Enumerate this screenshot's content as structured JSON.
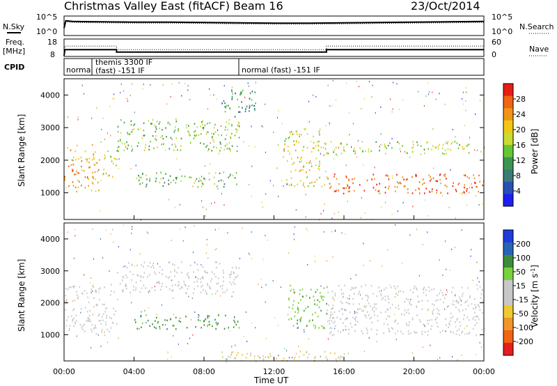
{
  "header": {
    "title": "Christmas Valley East (fitACF)",
    "beam": "Beam 16",
    "date": "23/Oct/2014"
  },
  "panel_labels": {
    "nsky": "N.Sky",
    "nsearch": "N.Search",
    "freq_line1": "Freq.",
    "freq_line2": "[MHz]",
    "nave": "Nave",
    "cpid": "CPID"
  },
  "noise_axis": {
    "left_ticks": [
      "10^5",
      "10^0"
    ],
    "right_ticks": [
      "10^5",
      "10^0"
    ]
  },
  "freq_axis": {
    "left_ticks": [
      "18",
      "8"
    ],
    "right_ticks": [
      "60",
      "0"
    ]
  },
  "cpid_segments": [
    {
      "label": "normal",
      "start_hour": 0,
      "end_hour": 1.6
    },
    {
      "label_line1": "themis 3300 IF",
      "label_line2": "(fast) -151 IF",
      "start_hour": 1.6,
      "end_hour": 10.0
    },
    {
      "label": "normal (fast) -151 IF",
      "start_hour": 10.0,
      "end_hour": 24
    }
  ],
  "colors": {
    "power": [
      "#1e1ef0",
      "#2850b4",
      "#3c7a78",
      "#3c9650",
      "#64c832",
      "#c8dc32",
      "#f0c814",
      "#f09614",
      "#f06414",
      "#e61e14"
    ],
    "velocity": [
      "#1e3cdc",
      "#2864b4",
      "#3c8c3c",
      "#78d23c",
      "#c8c8c8",
      "#c8c8c8",
      "#f0c832",
      "#f09628",
      "#f06414",
      "#e61e1e"
    ]
  },
  "chart_data": [
    {
      "type": "line",
      "title": "N.Sky / N.Search",
      "x_range_hours": [
        0,
        24
      ],
      "series": [
        {
          "name": "N.Sky",
          "x": [
            0,
            0.1,
            0.5,
            2,
            4,
            6,
            8,
            10,
            12,
            14,
            16,
            18,
            20,
            22,
            24
          ],
          "values": [
            2,
            4.2,
            4.0,
            3.9,
            3.8,
            3.8,
            3.7,
            3.6,
            3.5,
            3.5,
            3.6,
            3.7,
            3.8,
            3.9,
            4.0
          ]
        },
        {
          "name": "N.Search",
          "x": [
            0,
            0.1,
            0.5,
            2,
            4,
            6,
            8,
            10,
            12,
            14,
            16,
            18,
            20,
            22,
            24
          ],
          "values": [
            2,
            3.9,
            3.7,
            3.6,
            3.5,
            3.5,
            3.4,
            3.3,
            3.2,
            3.2,
            3.3,
            3.4,
            3.5,
            3.6,
            3.7
          ]
        }
      ]
    },
    {
      "type": "line",
      "title": "Freq. / Nave",
      "x_range_hours": [
        0,
        24
      ],
      "series": [
        {
          "name": "Freq.",
          "x": [
            0,
            0.05,
            3.0,
            3.0,
            15.0,
            15.0,
            24
          ],
          "values": [
            8,
            12.0,
            12.0,
            10.4,
            10.4,
            12.0,
            12.0
          ]
        },
        {
          "name": "Nave",
          "x": [
            0,
            0.05,
            3.0,
            3.0,
            15.0,
            15.0,
            24
          ],
          "values": [
            0,
            38,
            38,
            24,
            24,
            38,
            38
          ]
        }
      ]
    },
    {
      "type": "heatmap",
      "ylabel": "Slant Range [km]",
      "xlabel": "Time UT",
      "x_ticks": [
        "00:00",
        "04:00",
        "08:00",
        "12:00",
        "16:00",
        "20:00",
        "00:00"
      ],
      "y_ticks": [
        "1000",
        "2000",
        "3000",
        "4000"
      ],
      "ylim": [
        180,
        4500
      ],
      "colorbar": {
        "label": "Power [dB]",
        "ticks": [
          "28",
          "24",
          "20",
          "16",
          "12",
          "8",
          "4"
        ],
        "range": [
          0,
          30
        ]
      },
      "features": [
        {
          "t": [
            0.0,
            2.0
          ],
          "r": [
            1050,
            2500
          ],
          "value": 22
        },
        {
          "t": [
            2.0,
            3.0
          ],
          "r": [
            1500,
            2200
          ],
          "value": 18
        },
        {
          "t": [
            3.0,
            10.0
          ],
          "r": [
            2300,
            3300
          ],
          "value": 14
        },
        {
          "t": [
            4.0,
            10.0
          ],
          "r": [
            1200,
            1650
          ],
          "value": 12
        },
        {
          "t": [
            9.0,
            11.0
          ],
          "r": [
            3300,
            4200
          ],
          "value": 10
        },
        {
          "t": [
            12.5,
            15.0
          ],
          "r": [
            1200,
            3000
          ],
          "value": 18
        },
        {
          "t": [
            15.0,
            24.0
          ],
          "r": [
            1000,
            1600
          ],
          "value": 26
        },
        {
          "t": [
            15.0,
            24.0
          ],
          "r": [
            2200,
            2600
          ],
          "value": 16
        }
      ]
    },
    {
      "type": "heatmap",
      "ylabel": "Slant Range [km]",
      "xlabel": "Time UT",
      "x_ticks": [
        "00:00",
        "04:00",
        "08:00",
        "12:00",
        "16:00",
        "20:00",
        "00:00"
      ],
      "y_ticks": [
        "1000",
        "2000",
        "3000",
        "4000"
      ],
      "ylim": [
        180,
        4500
      ],
      "colorbar": {
        "label": "Velocity [m s^-1]",
        "ticks": [
          "200",
          "100",
          "50",
          "15",
          "-15",
          "-50",
          "-100",
          "-200"
        ],
        "range": [
          -250,
          250
        ]
      },
      "features": [
        {
          "t": [
            0.0,
            3.0
          ],
          "r": [
            1050,
            2600
          ],
          "value": 0
        },
        {
          "t": [
            3.0,
            10.0
          ],
          "r": [
            2300,
            3300
          ],
          "value": 0
        },
        {
          "t": [
            4.0,
            10.0
          ],
          "r": [
            1200,
            1650
          ],
          "value": 60
        },
        {
          "t": [
            12.8,
            15.0
          ],
          "r": [
            1200,
            2600
          ],
          "value": 40
        },
        {
          "t": [
            15.0,
            24.0
          ],
          "r": [
            1000,
            2600
          ],
          "value": 0
        },
        {
          "t": [
            9.0,
            16.0
          ],
          "r": [
            180,
            500
          ],
          "value": -50
        }
      ]
    }
  ]
}
